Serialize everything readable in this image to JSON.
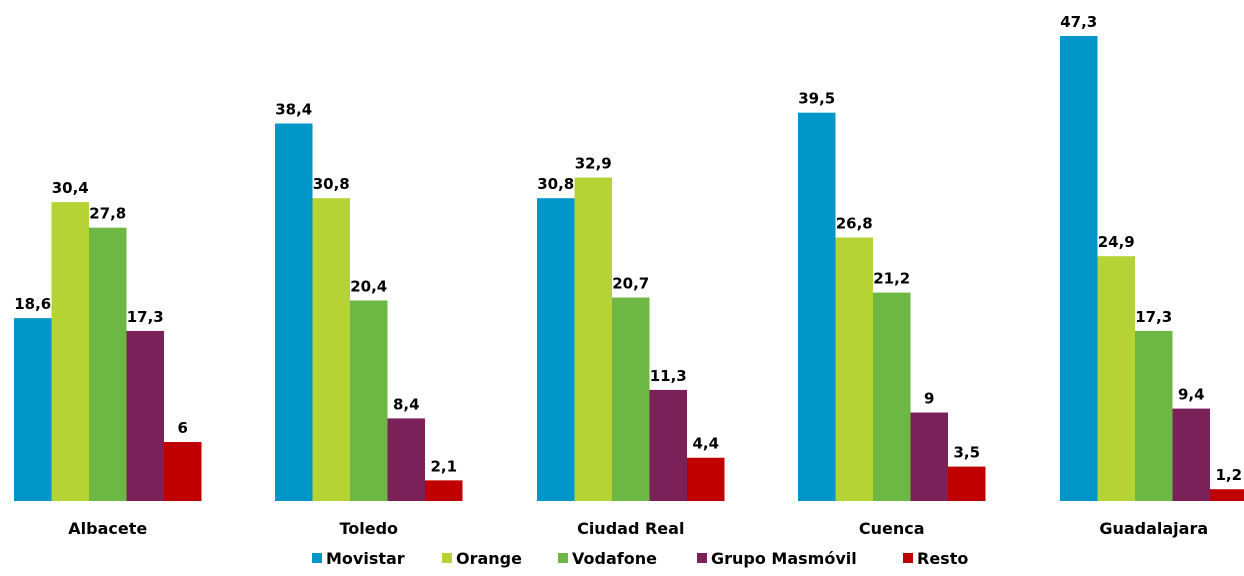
{
  "chart_data": {
    "type": "bar",
    "title": "",
    "xlabel": "",
    "ylabel": "",
    "grid": false,
    "legend_position": "bottom",
    "categories": [
      "Albacete",
      "Toledo",
      "Ciudad Real",
      "Cuenca",
      "Guadalajara"
    ],
    "ylim": [
      0,
      50
    ],
    "series": [
      {
        "name": "Movistar",
        "color": "#0096C8",
        "values": [
          18.6,
          38.4,
          30.8,
          39.5,
          47.3
        ],
        "labels": [
          "18,6",
          "38,4",
          "30,8",
          "39,5",
          "47,3"
        ]
      },
      {
        "name": "Orange",
        "color": "#B5D334",
        "values": [
          30.4,
          30.8,
          32.9,
          26.8,
          24.9
        ],
        "labels": [
          "30,4",
          "30,8",
          "32,9",
          "26,8",
          "24,9"
        ]
      },
      {
        "name": "Vodafone",
        "color": "#6DB844",
        "values": [
          27.8,
          20.4,
          20.7,
          21.2,
          17.3
        ],
        "labels": [
          "27,8",
          "20,4",
          "20,7",
          "21,2",
          "17,3"
        ]
      },
      {
        "name": "Grupo Masmóvil",
        "color": "#7A2159",
        "values": [
          17.3,
          8.4,
          11.3,
          9,
          9.4
        ],
        "labels": [
          "17,3",
          "8,4",
          "11,3",
          "9",
          "9,4"
        ]
      },
      {
        "name": "Resto",
        "color": "#C00000",
        "values": [
          6,
          2.1,
          4.4,
          3.5,
          1.2
        ],
        "labels": [
          "6",
          "2,1",
          "4,4",
          "3,5",
          "1,2"
        ]
      }
    ]
  }
}
